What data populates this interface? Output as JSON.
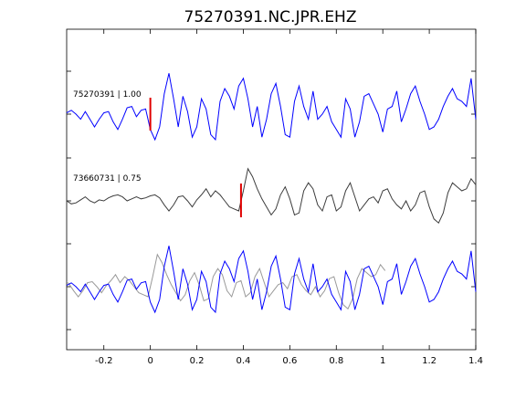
{
  "chart_data": {
    "type": "line",
    "title": "75270391.NC.JPR.EHZ",
    "xlim": [
      -0.36,
      1.4
    ],
    "x_ticks": [
      -0.2,
      0,
      0.2,
      0.4,
      0.6,
      0.8,
      1,
      1.2,
      1.4
    ],
    "x_tick_labels": [
      "-0.2",
      "0",
      "0.2",
      "0.4",
      "0.6",
      "0.8",
      "1",
      "1.2",
      "1.4"
    ],
    "grid": false,
    "legend": "none",
    "colors": {
      "primary": "#0000ff",
      "secondary": "#3c3c3c",
      "overlay_secondary": "#999999",
      "pick": "#e00000"
    },
    "traces": [
      {
        "label": "75270391 | 1.00",
        "color": "#0000ff",
        "pick_time": 0.0,
        "x": [
          -0.36,
          -0.34,
          -0.32,
          -0.3,
          -0.28,
          -0.26,
          -0.24,
          -0.22,
          -0.2,
          -0.18,
          -0.16,
          -0.14,
          -0.12,
          -0.1,
          -0.08,
          -0.06,
          -0.04,
          -0.02,
          0,
          0.02,
          0.04,
          0.06,
          0.08,
          0.1,
          0.12,
          0.14,
          0.16,
          0.18,
          0.2,
          0.22,
          0.24,
          0.26,
          0.28,
          0.3,
          0.32,
          0.34,
          0.36,
          0.38,
          0.4,
          0.42,
          0.44,
          0.46,
          0.48,
          0.5,
          0.52,
          0.54,
          0.56,
          0.58,
          0.6,
          0.62,
          0.64,
          0.66,
          0.68,
          0.7,
          0.72,
          0.74,
          0.76,
          0.78,
          0.8,
          0.82,
          0.84,
          0.86,
          0.88,
          0.9,
          0.92,
          0.94,
          0.96,
          0.98,
          1,
          1.02,
          1.04,
          1.06,
          1.08,
          1.1,
          1.12,
          1.14,
          1.16,
          1.18,
          1.2,
          1.22,
          1.24,
          1.26,
          1.28,
          1.3,
          1.32,
          1.34,
          1.36,
          1.38,
          1.4
        ],
        "y": [
          0.05,
          0.15,
          0.0,
          -0.2,
          0.1,
          -0.2,
          -0.5,
          -0.2,
          0.05,
          0.1,
          -0.3,
          -0.6,
          -0.2,
          0.25,
          0.3,
          -0.1,
          0.15,
          0.2,
          -0.6,
          -1.0,
          -0.5,
          0.8,
          1.6,
          0.6,
          -0.5,
          0.7,
          0.1,
          -0.9,
          -0.5,
          0.6,
          0.2,
          -0.8,
          -1.0,
          0.5,
          1.0,
          0.7,
          0.2,
          1.1,
          1.4,
          0.6,
          -0.5,
          0.3,
          -0.9,
          -0.2,
          0.8,
          1.2,
          0.3,
          -0.8,
          -0.9,
          0.5,
          1.1,
          0.3,
          -0.2,
          0.9,
          -0.2,
          0.0,
          0.3,
          -0.3,
          -0.6,
          -0.9,
          0.6,
          0.2,
          -0.9,
          -0.3,
          0.7,
          0.8,
          0.4,
          0.0,
          -0.7,
          0.2,
          0.3,
          0.9,
          -0.3,
          0.2,
          0.8,
          1.1,
          0.5,
          0.0,
          -0.6,
          -0.5,
          -0.2,
          0.3,
          0.7,
          1.0,
          0.6,
          0.5,
          0.3,
          1.4,
          -0.2
        ]
      },
      {
        "label": "73660731 | 0.75",
        "color": "#3c3c3c",
        "pick_time": 0.39,
        "x": [
          -0.36,
          -0.34,
          -0.32,
          -0.3,
          -0.28,
          -0.26,
          -0.24,
          -0.22,
          -0.2,
          -0.18,
          -0.16,
          -0.14,
          -0.12,
          -0.1,
          -0.08,
          -0.06,
          -0.04,
          -0.02,
          0,
          0.02,
          0.04,
          0.06,
          0.08,
          0.1,
          0.12,
          0.14,
          0.16,
          0.18,
          0.2,
          0.22,
          0.24,
          0.26,
          0.28,
          0.3,
          0.32,
          0.34,
          0.36,
          0.38,
          0.4,
          0.42,
          0.44,
          0.46,
          0.48,
          0.5,
          0.52,
          0.54,
          0.56,
          0.58,
          0.6,
          0.62,
          0.64,
          0.66,
          0.68,
          0.7,
          0.72,
          0.74,
          0.76,
          0.78,
          0.8,
          0.82,
          0.84,
          0.86,
          0.88,
          0.9,
          0.92,
          0.94,
          0.96,
          0.98,
          1,
          1.02,
          1.04,
          1.06,
          1.08,
          1.1,
          1.12,
          1.14,
          1.16,
          1.18,
          1.2,
          1.22,
          1.24,
          1.26,
          1.28,
          1.3,
          1.32,
          1.34,
          1.36,
          1.38,
          1.4
        ],
        "y": [
          0.0,
          -0.15,
          -0.1,
          0.05,
          0.2,
          0.0,
          -0.1,
          0.05,
          0.0,
          0.15,
          0.25,
          0.3,
          0.2,
          0.0,
          0.1,
          0.2,
          0.1,
          0.15,
          0.25,
          0.3,
          0.15,
          -0.2,
          -0.5,
          -0.2,
          0.2,
          0.25,
          0.0,
          -0.3,
          0.05,
          0.3,
          0.6,
          0.2,
          0.5,
          0.3,
          0.0,
          -0.3,
          -0.4,
          -0.5,
          0.5,
          1.6,
          1.2,
          0.6,
          0.1,
          -0.3,
          -0.7,
          -0.4,
          0.3,
          0.7,
          0.1,
          -0.7,
          -0.6,
          0.5,
          0.9,
          0.6,
          -0.2,
          -0.5,
          0.2,
          0.3,
          -0.5,
          -0.3,
          0.5,
          0.9,
          0.2,
          -0.5,
          -0.2,
          0.1,
          0.2,
          -0.1,
          0.5,
          0.6,
          0.1,
          -0.2,
          -0.4,
          0.0,
          -0.5,
          -0.2,
          0.4,
          0.5,
          -0.3,
          -0.9,
          -1.1,
          -0.6,
          0.4,
          0.9,
          0.7,
          0.5,
          0.6,
          1.1,
          0.8
        ]
      },
      {
        "label": "",
        "overlay": true
      }
    ]
  }
}
